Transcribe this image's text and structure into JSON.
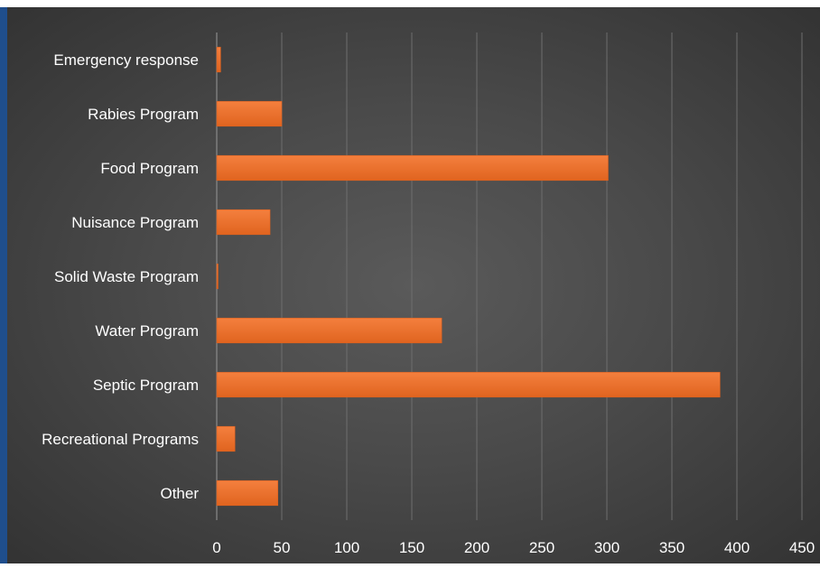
{
  "chart_data": {
    "type": "bar",
    "orientation": "horizontal",
    "categories": [
      "Emergency response",
      "Rabies Program",
      "Food Program",
      "Nuisance Program",
      "Solid Waste Program",
      "Water Program",
      "Septic Program",
      "Recreational Programs",
      "Other"
    ],
    "values": [
      3,
      50,
      301,
      41,
      1,
      173,
      387,
      14,
      47
    ],
    "xticks": [
      "0",
      "50",
      "100",
      "150",
      "200",
      "250",
      "300",
      "350",
      "400",
      "450"
    ],
    "xlim": [
      0,
      450
    ],
    "grid": "vertical",
    "legend": "none"
  },
  "colors": {
    "bar": "#ed7031",
    "bar_dark": "#d95f1f",
    "gridline": "#6e6e6e",
    "axis": "#8a8a8a",
    "text": "#ffffff",
    "frame": "#1f4e8c"
  }
}
